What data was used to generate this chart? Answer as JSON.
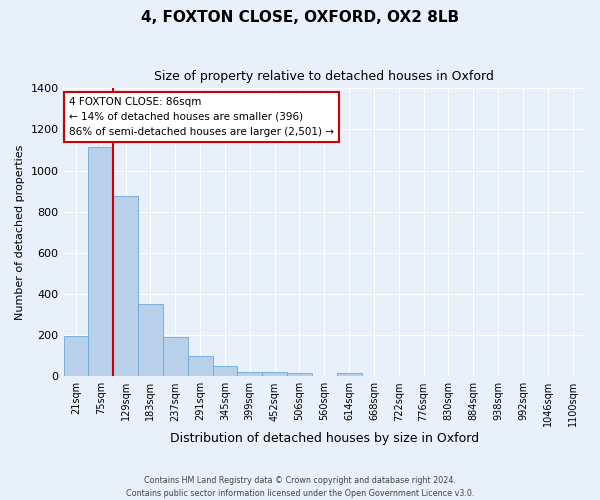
{
  "title": "4, FOXTON CLOSE, OXFORD, OX2 8LB",
  "subtitle": "Size of property relative to detached houses in Oxford",
  "xlabel": "Distribution of detached houses by size in Oxford",
  "ylabel": "Number of detached properties",
  "bar_labels": [
    "21sqm",
    "75sqm",
    "129sqm",
    "183sqm",
    "237sqm",
    "291sqm",
    "345sqm",
    "399sqm",
    "452sqm",
    "506sqm",
    "560sqm",
    "614sqm",
    "668sqm",
    "722sqm",
    "776sqm",
    "830sqm",
    "884sqm",
    "938sqm",
    "992sqm",
    "1046sqm",
    "1100sqm"
  ],
  "bar_values": [
    195,
    1115,
    875,
    350,
    190,
    100,
    52,
    22,
    20,
    18,
    0,
    15,
    0,
    0,
    0,
    0,
    0,
    0,
    0,
    0,
    0
  ],
  "bar_color": "#b8d0ea",
  "bar_edge_color": "#6aaad4",
  "vline_color": "#cc0000",
  "annotation_text": "4 FOXTON CLOSE: 86sqm\n← 14% of detached houses are smaller (396)\n86% of semi-detached houses are larger (2,501) →",
  "annotation_box_facecolor": "#ffffff",
  "annotation_box_edgecolor": "#cc0000",
  "ylim": [
    0,
    1400
  ],
  "yticks": [
    0,
    200,
    400,
    600,
    800,
    1000,
    1200,
    1400
  ],
  "footer1": "Contains HM Land Registry data © Crown copyright and database right 2024.",
  "footer2": "Contains public sector information licensed under the Open Government Licence v3.0.",
  "bg_color": "#e8f0fa",
  "plot_bg_color": "#e8f0fa",
  "title_fontsize": 11,
  "subtitle_fontsize": 9,
  "axis_label_fontsize": 8,
  "tick_fontsize": 7,
  "grid_color": "#ffffff",
  "vline_x": 1.5
}
